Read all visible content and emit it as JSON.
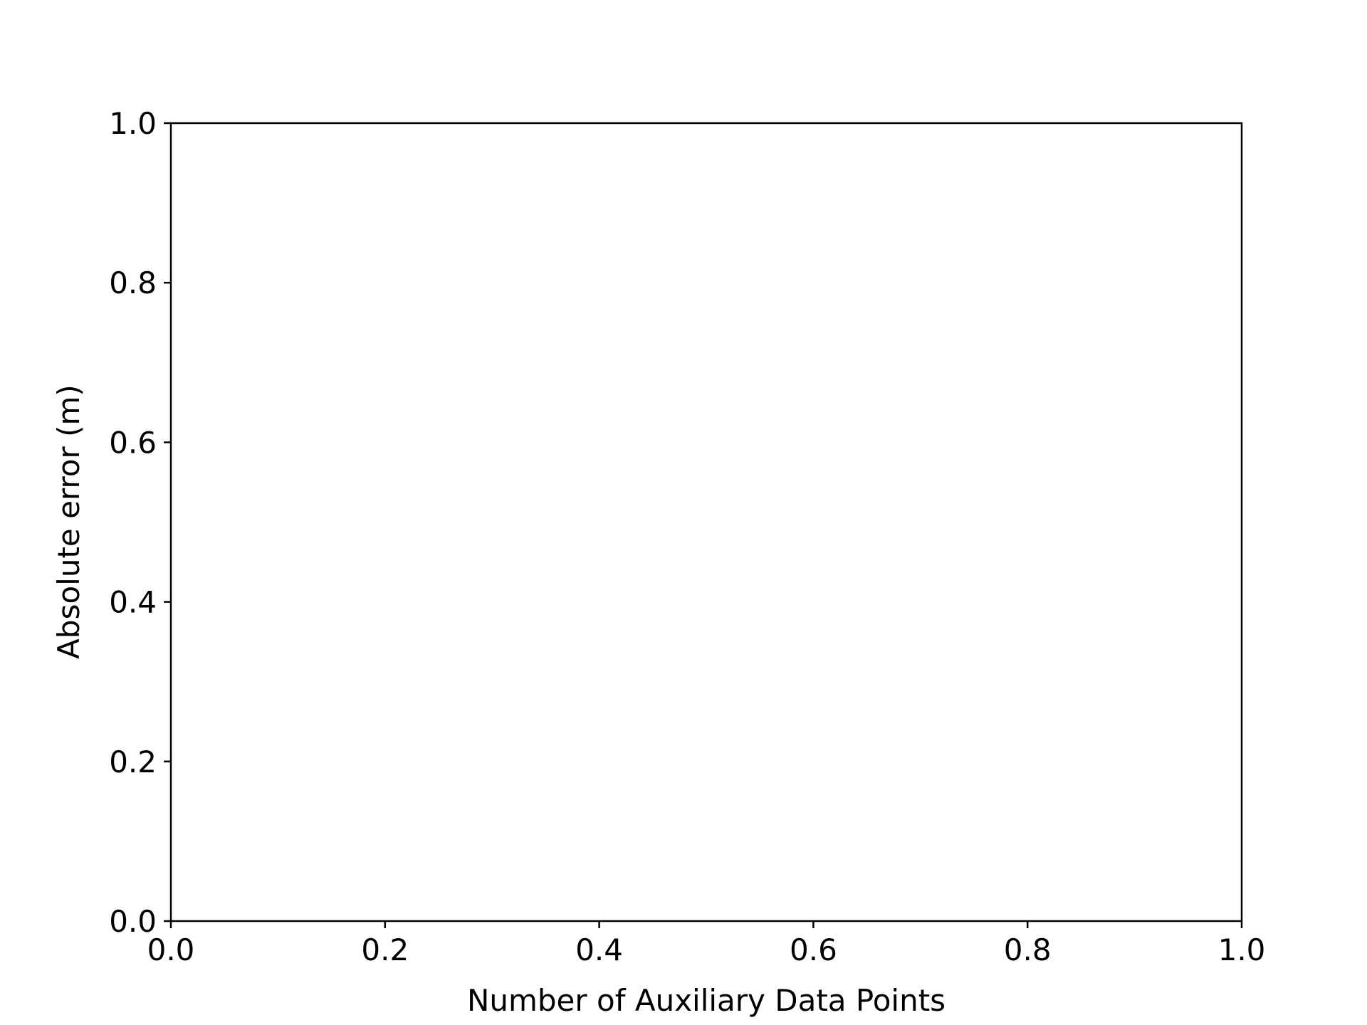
{
  "chart_data": {
    "type": "line",
    "title": "",
    "xlabel": "Number of Auxiliary Data Points",
    "ylabel": "Absolute error (m)",
    "xlim": [
      0.0,
      1.0
    ],
    "ylim": [
      0.0,
      1.0
    ],
    "xticks": [
      0.0,
      0.2,
      0.4,
      0.6,
      0.8,
      1.0
    ],
    "yticks": [
      0.0,
      0.2,
      0.4,
      0.6,
      0.8,
      1.0
    ],
    "xtick_labels": [
      "0.0",
      "0.2",
      "0.4",
      "0.6",
      "0.8",
      "1.0"
    ],
    "ytick_labels": [
      "0.0",
      "0.2",
      "0.4",
      "0.6",
      "0.8",
      "1.0"
    ],
    "series": [],
    "grid": false,
    "legend": "none"
  }
}
